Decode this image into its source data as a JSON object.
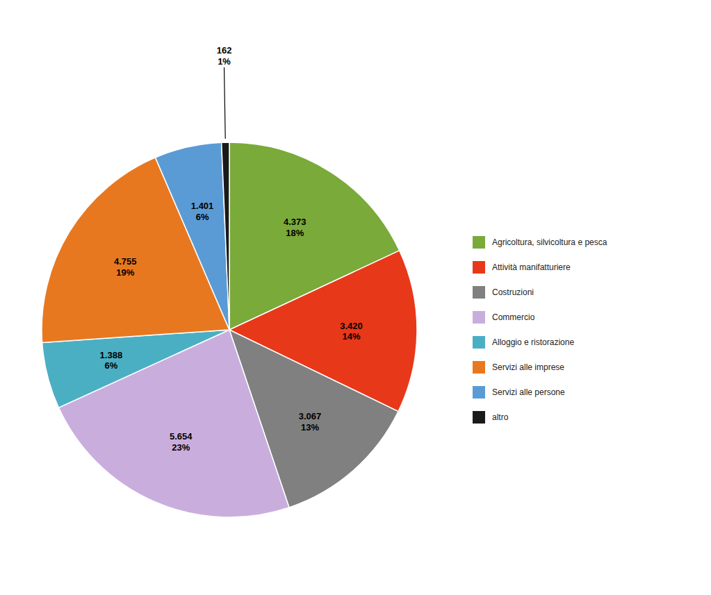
{
  "chart_data": {
    "type": "pie",
    "categories": [
      "Agricoltura, silvicoltura e pesca",
      "Attività manifatturiere",
      "Costruzioni",
      "Commercio",
      "Alloggio e ristorazione",
      "Servizi alle imprese",
      "Servizi alle persone",
      "altro"
    ],
    "values": [
      4373,
      3420,
      3067,
      5654,
      1388,
      4755,
      1401,
      162
    ],
    "value_labels": [
      "4.373",
      "3.420",
      "3.067",
      "5.654",
      "1.388",
      "4.755",
      "1.401",
      "162"
    ],
    "percentages": [
      18,
      14,
      13,
      23,
      6,
      19,
      6,
      1
    ],
    "percentage_labels": [
      "18%",
      "14%",
      "13%",
      "23%",
      "6%",
      "19%",
      "6%",
      "1%"
    ],
    "colors": [
      "#7AAA3A",
      "#E8381A",
      "#808080",
      "#C9AEDD",
      "#4BAFC4",
      "#E87820",
      "#5B9BD5",
      "#1A1A1A"
    ],
    "data_labels": true,
    "legend": "right"
  }
}
